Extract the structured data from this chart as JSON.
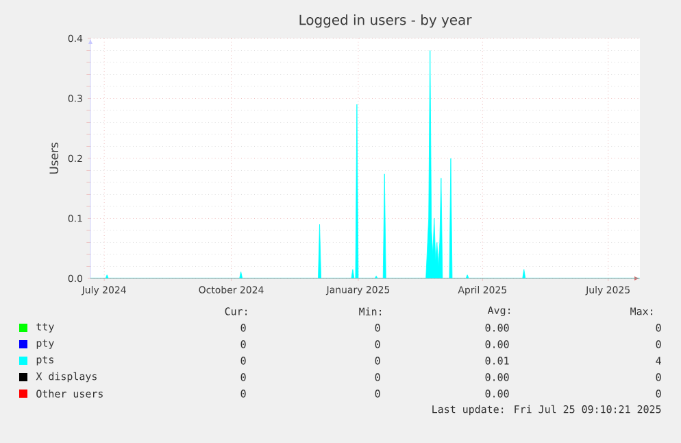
{
  "chart_data": {
    "type": "area",
    "title": "Logged in users - by year",
    "ylabel": "Users",
    "xlim": [
      "2024-06-21",
      "2025-07-24"
    ],
    "xticks": [
      {
        "value": "2024-07-01",
        "label": "July 2024"
      },
      {
        "value": "2024-10-01",
        "label": "October 2024"
      },
      {
        "value": "2025-01-01",
        "label": "January 2025"
      },
      {
        "value": "2025-04-01",
        "label": "April 2025"
      },
      {
        "value": "2025-07-01",
        "label": "July 2025"
      }
    ],
    "ylim": [
      0,
      0.4
    ],
    "yticks": [
      {
        "value": 0,
        "label": "0.0"
      },
      {
        "value": 0.1,
        "label": "0.1"
      },
      {
        "value": 0.2,
        "label": "0.2"
      },
      {
        "value": 0.3,
        "label": "0.3"
      },
      {
        "value": 0.4,
        "label": "0.4"
      }
    ],
    "grid": true,
    "legend": "bottom",
    "series": [
      {
        "name": "tty",
        "color": "#00ff00"
      },
      {
        "name": "pty",
        "color": "#0000ff"
      },
      {
        "name": "pts",
        "color": "#00ffff",
        "x": [
          "2024-06-21",
          "2024-07-02",
          "2024-07-03",
          "2024-07-04",
          "2024-10-07",
          "2024-10-08",
          "2024-10-09",
          "2024-12-03",
          "2024-12-04",
          "2024-12-05",
          "2024-12-27",
          "2024-12-28",
          "2024-12-29",
          "2024-12-30",
          "2024-12-31",
          "2025-01-01",
          "2025-01-13",
          "2025-01-14",
          "2025-01-15",
          "2025-01-19",
          "2025-01-20",
          "2025-01-21",
          "2025-02-19",
          "2025-02-20",
          "2025-02-21",
          "2025-02-22",
          "2025-02-23",
          "2025-02-24",
          "2025-02-25",
          "2025-02-26",
          "2025-02-27",
          "2025-02-28",
          "2025-03-01",
          "2025-03-02",
          "2025-03-03",
          "2025-03-08",
          "2025-03-09",
          "2025-03-10",
          "2025-03-20",
          "2025-03-21",
          "2025-03-22",
          "2025-04-30",
          "2025-05-01",
          "2025-05-02",
          "2025-07-24"
        ],
        "values": [
          0,
          0,
          0.006,
          0,
          0,
          0.011,
          0,
          0,
          0.09,
          0,
          0,
          0.015,
          0,
          0,
          0.29,
          0,
          0,
          0.004,
          0,
          0,
          0.174,
          0,
          0,
          0.05,
          0.1,
          0.38,
          0.08,
          0.04,
          0.1,
          0.03,
          0.06,
          0.02,
          0.06,
          0.167,
          0,
          0,
          0.2,
          0,
          0,
          0.006,
          0,
          0,
          0.015,
          0,
          0
        ]
      },
      {
        "name": "X displays",
        "color": "#000000"
      },
      {
        "name": "Other users",
        "color": "#ff0000"
      }
    ],
    "annotations": [
      "Cur:",
      "Min:",
      "Avg:",
      "Max:",
      "0",
      "0",
      "0.00",
      "0",
      "0",
      "0",
      "0.00",
      "0",
      "0",
      "0",
      "0.01",
      "4",
      "0",
      "0",
      "0.00",
      "0",
      "0",
      "0",
      "0.00",
      "0",
      "Last update: Fri Jul 25 09:10:21 2025"
    ]
  }
}
